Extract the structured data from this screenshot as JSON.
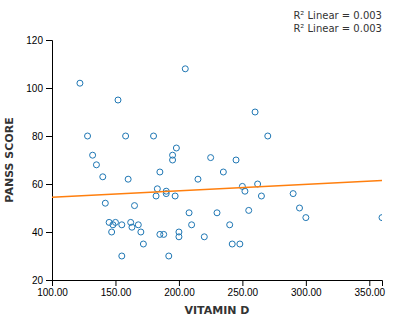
{
  "chart_data": {
    "type": "scatter",
    "xlabel": "VITAMIN D",
    "ylabel": "PANSS SCORE",
    "annotations": [
      "R² Linear = 0.003",
      "R² Linear = 0.003"
    ],
    "series": [
      {
        "type": "scatter",
        "x": [
          122,
          128,
          132,
          135,
          140,
          142,
          145,
          147,
          148,
          150,
          152,
          155,
          155,
          158,
          160,
          162,
          163,
          165,
          168,
          170,
          172,
          180,
          182,
          183,
          185,
          185,
          188,
          190,
          190,
          192,
          195,
          195,
          197,
          198,
          200,
          200,
          205,
          208,
          210,
          215,
          220,
          225,
          230,
          235,
          240,
          242,
          245,
          248,
          250,
          252,
          255,
          260,
          262,
          265,
          270,
          290,
          295,
          300,
          360
        ],
        "values": [
          102,
          80,
          72,
          68,
          63,
          52,
          44,
          40,
          43,
          44,
          95,
          30,
          43,
          80,
          62,
          44,
          42,
          51,
          43,
          40,
          35,
          80,
          55,
          58,
          65,
          39,
          39,
          57,
          56,
          30,
          72,
          70,
          55,
          75,
          38,
          40,
          108,
          48,
          43,
          62,
          38,
          71,
          48,
          65,
          43,
          35,
          70,
          35,
          59,
          57,
          49,
          90,
          60,
          55,
          80,
          56,
          50,
          46,
          46
        ]
      },
      {
        "type": "line",
        "x": [
          100,
          360
        ],
        "values": [
          54.5,
          61.5
        ]
      }
    ],
    "xlim": [
      100,
      360
    ],
    "ylim": [
      20,
      120
    ],
    "xticks": [
      {
        "value": 100,
        "label": "100.00"
      },
      {
        "value": 150,
        "label": "150.00"
      },
      {
        "value": 200,
        "label": "200.00"
      },
      {
        "value": 250,
        "label": "250.00"
      },
      {
        "value": 300,
        "label": "300.00"
      },
      {
        "value": 350,
        "label": "350.00"
      }
    ],
    "yticks": [
      20,
      40,
      60,
      80,
      100,
      120
    ],
    "grid": false
  }
}
